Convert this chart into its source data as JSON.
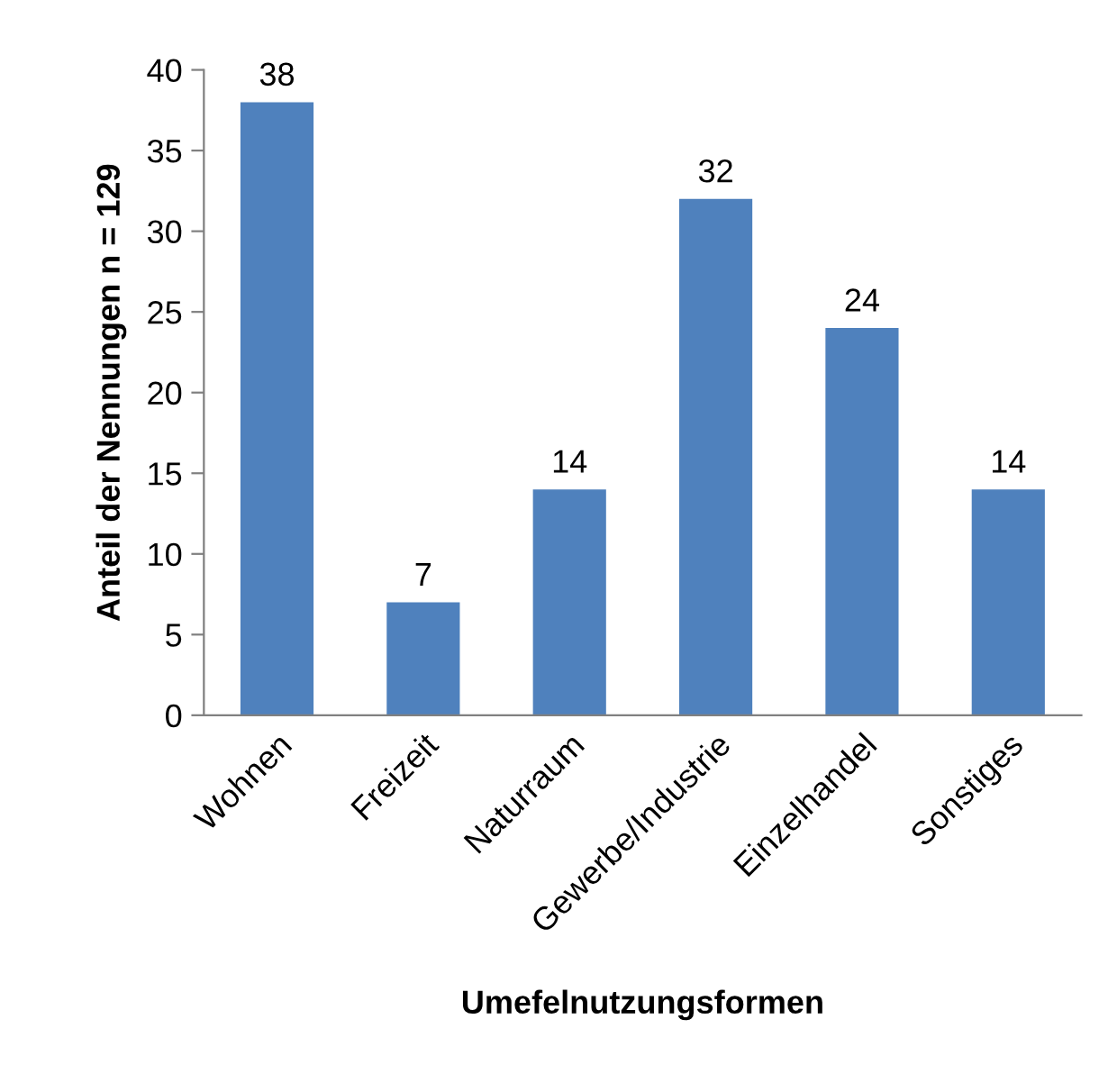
{
  "chart_data": {
    "type": "bar",
    "xlabel": "Umefelnutzungsformen",
    "ylabel": "Anteil der Nennungen n = 129",
    "categories": [
      "Wohnen",
      "Freizeit",
      "Naturraum",
      "Gewerbe/Industrie",
      "Einzelhandel",
      "Sonstiges"
    ],
    "values": [
      38,
      7,
      14,
      32,
      24,
      14
    ],
    "color": "#4f81bd",
    "ylim": [
      0,
      40
    ],
    "yticks": [
      0,
      5,
      10,
      15,
      20,
      25,
      30,
      35,
      40
    ],
    "grid": false,
    "data_labels": true
  }
}
